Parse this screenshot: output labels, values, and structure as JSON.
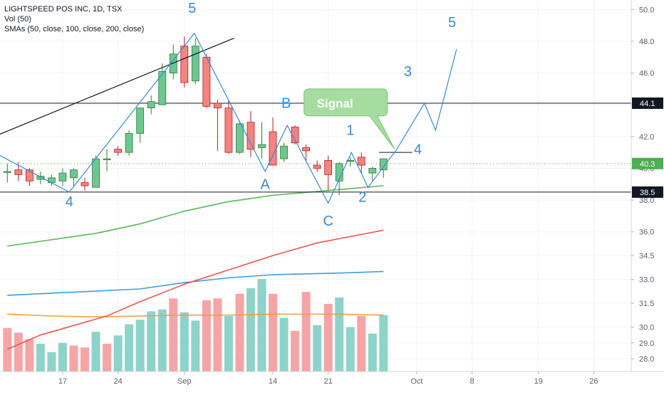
{
  "legend": {
    "symbol_line": "LIGHTSPEED POS INC, 1D, TSX",
    "volume_line": "Vol (50)",
    "sma_line": "SMAs (50, close, 100, close, 200, close)"
  },
  "colors": {
    "up": "#26a69a",
    "up_fill": "#6cc793",
    "down": "#ef5350",
    "down_fill": "#f28482",
    "vol_up": "#8ed3c9",
    "vol_down": "#f5a5a5",
    "sma50": "#5cb85c",
    "sma100": "#e8594a",
    "sma200": "#3a9ee0",
    "vol_ma": "#f39c3a",
    "wave": "#3a8ad0",
    "signal_fill": "#a6dca0",
    "price_tag_green": "#4caf50"
  },
  "chart_data": {
    "type": "candlestick",
    "symbol": "LIGHTSPEED POS INC",
    "interval": "1D",
    "exchange": "TSX",
    "ylim": [
      27.2,
      50.6
    ],
    "y_ticks": [
      "50.0",
      "48.0",
      "46.0",
      "44.0",
      "42.0",
      "40.0",
      "38.0",
      "36.0",
      "34.5",
      "33.0",
      "31.5",
      "30.0",
      "29.0",
      "28.0"
    ],
    "x_ticks": [
      {
        "label": "17",
        "bar": 5
      },
      {
        "label": "24",
        "bar": 10
      },
      {
        "label": "Sep",
        "bar": 16
      },
      {
        "label": "14",
        "bar": 24
      },
      {
        "label": "21",
        "bar": 29
      },
      {
        "label": "Oct",
        "bar": 37
      },
      {
        "label": "8",
        "bar": 42
      },
      {
        "label": "19",
        "bar": 48
      },
      {
        "label": "26",
        "bar": 53
      }
    ],
    "candles": [
      {
        "o": 39.8,
        "h": 40.3,
        "l": 39.1,
        "c": 39.8
      },
      {
        "o": 39.9,
        "h": 40.4,
        "l": 39.2,
        "c": 39.6
      },
      {
        "o": 39.9,
        "h": 40.0,
        "l": 38.9,
        "c": 39.2
      },
      {
        "o": 39.3,
        "h": 39.8,
        "l": 39.0,
        "c": 39.5
      },
      {
        "o": 39.1,
        "h": 39.6,
        "l": 38.9,
        "c": 39.4
      },
      {
        "o": 39.2,
        "h": 40.0,
        "l": 38.9,
        "c": 39.7
      },
      {
        "o": 39.4,
        "h": 40.0,
        "l": 38.9,
        "c": 39.9
      },
      {
        "o": 39.1,
        "h": 39.4,
        "l": 38.6,
        "c": 38.9
      },
      {
        "o": 38.8,
        "h": 40.8,
        "l": 38.8,
        "c": 40.6
      },
      {
        "o": 40.6,
        "h": 41.2,
        "l": 39.8,
        "c": 40.6
      },
      {
        "o": 41.2,
        "h": 41.4,
        "l": 40.8,
        "c": 41.0
      },
      {
        "o": 41.0,
        "h": 42.4,
        "l": 40.8,
        "c": 42.2
      },
      {
        "o": 42.2,
        "h": 43.8,
        "l": 41.6,
        "c": 43.8
      },
      {
        "o": 43.8,
        "h": 44.6,
        "l": 43.4,
        "c": 44.2
      },
      {
        "o": 44.0,
        "h": 46.6,
        "l": 44.0,
        "c": 46.1
      },
      {
        "o": 46.0,
        "h": 47.8,
        "l": 45.6,
        "c": 47.2
      },
      {
        "o": 47.7,
        "h": 48.3,
        "l": 45.1,
        "c": 45.4
      },
      {
        "o": 45.5,
        "h": 48.2,
        "l": 45.3,
        "c": 47.7
      },
      {
        "o": 47.0,
        "h": 47.2,
        "l": 43.8,
        "c": 43.9
      },
      {
        "o": 44.1,
        "h": 44.3,
        "l": 41.1,
        "c": 43.8
      },
      {
        "o": 43.8,
        "h": 44.3,
        "l": 40.9,
        "c": 41.0
      },
      {
        "o": 41.0,
        "h": 43.0,
        "l": 40.9,
        "c": 42.8
      },
      {
        "o": 42.9,
        "h": 43.6,
        "l": 40.7,
        "c": 41.2
      },
      {
        "o": 41.3,
        "h": 42.9,
        "l": 40.6,
        "c": 41.5
      },
      {
        "o": 42.3,
        "h": 43.2,
        "l": 40.2,
        "c": 40.2
      },
      {
        "o": 40.6,
        "h": 41.6,
        "l": 40.4,
        "c": 41.4
      },
      {
        "o": 42.6,
        "h": 42.7,
        "l": 41.5,
        "c": 41.6
      },
      {
        "o": 41.3,
        "h": 41.5,
        "l": 40.4,
        "c": 41.1
      },
      {
        "o": 40.2,
        "h": 40.5,
        "l": 39.8,
        "c": 40.0
      },
      {
        "o": 40.5,
        "h": 40.8,
        "l": 38.6,
        "c": 39.6
      },
      {
        "o": 39.2,
        "h": 40.4,
        "l": 38.3,
        "c": 40.3
      },
      {
        "o": 40.5,
        "h": 40.7,
        "l": 40.1,
        "c": 40.5
      },
      {
        "o": 40.7,
        "h": 41.0,
        "l": 39.7,
        "c": 40.2
      },
      {
        "o": 39.7,
        "h": 40.1,
        "l": 39.2,
        "c": 40.0
      },
      {
        "o": 39.9,
        "h": 40.5,
        "l": 39.4,
        "c": 40.6
      }
    ],
    "sma50": [
      [
        0,
        35.1
      ],
      [
        4,
        35.5
      ],
      [
        8,
        35.9
      ],
      [
        12,
        36.5
      ],
      [
        16,
        37.3
      ],
      [
        20,
        37.9
      ],
      [
        24,
        38.3
      ],
      [
        29,
        38.6
      ],
      [
        34,
        38.9
      ]
    ],
    "sma100": [
      [
        0,
        28.6
      ],
      [
        3,
        29.5
      ],
      [
        6,
        30.1
      ],
      [
        9,
        30.7
      ],
      [
        12,
        31.6
      ],
      [
        16,
        32.7
      ],
      [
        20,
        33.6
      ],
      [
        24,
        34.5
      ],
      [
        28,
        35.3
      ],
      [
        34,
        36.1
      ]
    ],
    "sma200": [
      [
        0,
        32.0
      ],
      [
        6,
        32.2
      ],
      [
        12,
        32.4
      ],
      [
        16,
        32.8
      ],
      [
        20,
        33.1
      ],
      [
        24,
        33.3
      ],
      [
        30,
        33.4
      ],
      [
        34,
        33.5
      ]
    ],
    "volume": [
      {
        "v": 0.47,
        "up": false
      },
      {
        "v": 0.42,
        "up": false
      },
      {
        "v": 0.35,
        "up": false
      },
      {
        "v": 0.3,
        "up": true
      },
      {
        "v": 0.21,
        "up": true
      },
      {
        "v": 0.31,
        "up": true
      },
      {
        "v": 0.28,
        "up": false
      },
      {
        "v": 0.26,
        "up": false
      },
      {
        "v": 0.43,
        "up": true
      },
      {
        "v": 0.3,
        "up": false
      },
      {
        "v": 0.39,
        "up": true
      },
      {
        "v": 0.51,
        "up": true
      },
      {
        "v": 0.56,
        "up": true
      },
      {
        "v": 0.65,
        "up": true
      },
      {
        "v": 0.67,
        "up": true
      },
      {
        "v": 0.79,
        "up": false
      },
      {
        "v": 0.64,
        "up": true
      },
      {
        "v": 0.55,
        "up": true
      },
      {
        "v": 0.77,
        "up": false
      },
      {
        "v": 0.79,
        "up": false
      },
      {
        "v": 0.6,
        "up": true
      },
      {
        "v": 0.84,
        "up": false
      },
      {
        "v": 0.9,
        "up": true
      },
      {
        "v": 1.0,
        "up": true
      },
      {
        "v": 0.84,
        "up": false
      },
      {
        "v": 0.58,
        "up": true
      },
      {
        "v": 0.44,
        "up": false
      },
      {
        "v": 0.86,
        "up": false
      },
      {
        "v": 0.5,
        "up": true
      },
      {
        "v": 0.73,
        "up": false
      },
      {
        "v": 0.8,
        "up": true
      },
      {
        "v": 0.48,
        "up": true
      },
      {
        "v": 0.6,
        "up": false
      },
      {
        "v": 0.41,
        "up": true
      },
      {
        "v": 0.61,
        "up": true
      }
    ],
    "vol_ma": [
      [
        0,
        0.62
      ],
      [
        4,
        0.6
      ],
      [
        8,
        0.59
      ],
      [
        12,
        0.6
      ],
      [
        16,
        0.61
      ],
      [
        20,
        0.61
      ],
      [
        24,
        0.62
      ],
      [
        30,
        0.62
      ],
      [
        34,
        0.61
      ]
    ],
    "horizontal_lines": [
      44.1,
      38.5,
      41.0
    ],
    "trendline": {
      "from": [
        -1.2,
        42.0
      ],
      "to": [
        20.5,
        48.2
      ]
    },
    "elliott_path": [
      [
        -1.2,
        41.0
      ],
      [
        5.6,
        38.5
      ],
      [
        16.9,
        48.5
      ],
      [
        23.3,
        39.8
      ],
      [
        25.3,
        42.7
      ],
      [
        29.0,
        37.8
      ],
      [
        31.1,
        41.0
      ],
      [
        32.6,
        38.8
      ],
      [
        35.2,
        41.2
      ],
      [
        37.7,
        44.1
      ],
      [
        38.7,
        42.4
      ],
      [
        40.6,
        47.5
      ]
    ],
    "annotations": [
      {
        "text": "5",
        "x": 16.7,
        "y": 49.8,
        "color": "wave"
      },
      {
        "text": "4",
        "x": 5.6,
        "y": 37.6,
        "color": "wave"
      },
      {
        "text": "A",
        "x": 23.3,
        "y": 38.7,
        "color": "wave"
      },
      {
        "text": "B",
        "x": 25.2,
        "y": 43.8,
        "color": "wave"
      },
      {
        "text": "C",
        "x": 29.0,
        "y": 36.4,
        "color": "wave"
      },
      {
        "text": "1",
        "x": 31.0,
        "y": 42.1,
        "color": "wave"
      },
      {
        "text": "2",
        "x": 32.1,
        "y": 37.9,
        "color": "wave"
      },
      {
        "text": "4",
        "x": 37.1,
        "y": 40.9,
        "color": "wave"
      },
      {
        "text": "3",
        "x": 36.2,
        "y": 45.8,
        "color": "wave"
      },
      {
        "text": "5",
        "x": 40.2,
        "y": 48.9,
        "color": "wave"
      }
    ],
    "signal_label": "Signal",
    "price_tags": [
      {
        "text": "44.1",
        "price": 44.1,
        "style": "dark"
      },
      {
        "text": "40.3",
        "price": 40.3,
        "style": "green"
      },
      {
        "text": "38.5",
        "price": 38.5,
        "style": "dark"
      }
    ]
  }
}
